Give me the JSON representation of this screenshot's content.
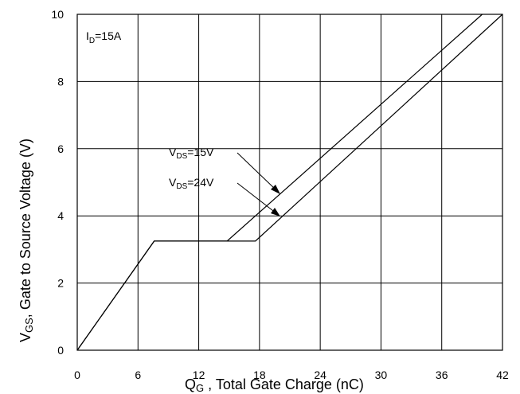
{
  "chart_data": {
    "type": "line",
    "xlabel_main": "Q",
    "xlabel_sub": "G",
    "xlabel_rest": " , Total Gate Charge (nC)",
    "ylabel_main": "V",
    "ylabel_sub": "GS",
    "ylabel_rest": ", Gate to Source Voltage (V)",
    "xlim": [
      0,
      42
    ],
    "ylim": [
      0,
      10
    ],
    "x_ticks": [
      "0",
      "6",
      "12",
      "18",
      "24",
      "30",
      "36",
      "42"
    ],
    "y_ticks": [
      "0",
      "2",
      "4",
      "6",
      "8",
      "10"
    ],
    "grid": true,
    "condition": {
      "main": "I",
      "sub": "D",
      "rest": "=15A"
    },
    "series": [
      {
        "label_main": "V",
        "label_sub": "DS",
        "label_rest": "=15V",
        "x": [
          0,
          7.6,
          14.8,
          40.0
        ],
        "y": [
          0,
          3.25,
          3.25,
          10.0
        ]
      },
      {
        "label_main": "V",
        "label_sub": "DS",
        "label_rest": "=24V",
        "x": [
          0,
          7.6,
          17.6,
          42.0
        ],
        "y": [
          0,
          3.25,
          3.25,
          10.0
        ]
      }
    ]
  }
}
